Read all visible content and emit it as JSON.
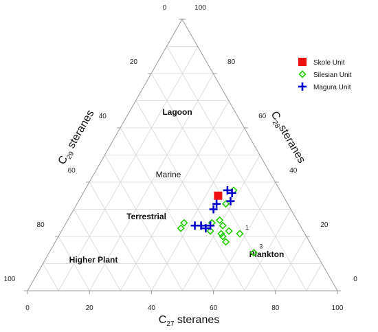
{
  "chart_data": {
    "type": "scatter",
    "subtype": "ternary",
    "axes": {
      "bottom": {
        "label_main": "C",
        "label_sub": "27",
        "label_rest": " steranes",
        "ticks": [
          "0",
          "20",
          "40",
          "60",
          "80",
          "100"
        ]
      },
      "left": {
        "label_main": "C",
        "label_sub": "29",
        "label_rest": " steranes",
        "ticks": [
          "100",
          "80",
          "60",
          "40",
          "20",
          "0"
        ]
      },
      "right": {
        "label_main": "C",
        "label_sub": "28",
        "label_rest": "steranes",
        "ticks": [
          "0",
          "20",
          "40",
          "60",
          "80",
          "100"
        ]
      }
    },
    "range": [
      0,
      100
    ],
    "grid": true,
    "regions": [
      "Lagoon",
      "Marine",
      "Terrestrial",
      "Higher Plant",
      "Plankton"
    ],
    "annotations": [
      {
        "text": "1",
        "c27": 58,
        "c28": 21
      },
      {
        "text": "3",
        "c27": 66,
        "c28": 14
      }
    ],
    "legend": {
      "placement": "top-right"
    },
    "series": [
      {
        "name": "Skole Unit",
        "marker": "square",
        "color": "#ee1111",
        "points": [
          {
            "c27": 44,
            "c28": 35,
            "c29": 21
          }
        ]
      },
      {
        "name": "Silesian Unit",
        "marker": "diamond",
        "color": "#22cc00",
        "points": [
          {
            "c27": 48,
            "c28": 37,
            "c29": 15
          },
          {
            "c27": 48,
            "c28": 32,
            "c29": 20
          },
          {
            "c27": 47,
            "c28": 25,
            "c29": 28
          },
          {
            "c27": 49,
            "c28": 26,
            "c29": 25
          },
          {
            "c27": 48,
            "c28": 22,
            "c29": 30
          },
          {
            "c27": 51,
            "c28": 24,
            "c29": 25
          },
          {
            "c27": 52,
            "c28": 21,
            "c29": 27
          },
          {
            "c27": 53,
            "c28": 20,
            "c29": 27
          },
          {
            "c27": 54,
            "c28": 22,
            "c29": 24
          },
          {
            "c27": 55,
            "c28": 18,
            "c29": 27
          },
          {
            "c27": 38,
            "c28": 25,
            "c29": 37
          },
          {
            "c27": 38,
            "c28": 23,
            "c29": 39
          },
          {
            "c27": 58,
            "c28": 21,
            "c29": 21
          },
          {
            "c27": 66,
            "c28": 14,
            "c29": 20
          }
        ]
      },
      {
        "name": "Magura Unit",
        "marker": "plus",
        "color": "#0000cc",
        "points": [
          {
            "c27": 46,
            "c28": 37,
            "c29": 17
          },
          {
            "c27": 48,
            "c28": 36,
            "c29": 16
          },
          {
            "c27": 49,
            "c28": 33,
            "c29": 18
          },
          {
            "c27": 45,
            "c28": 32,
            "c29": 23
          },
          {
            "c27": 45,
            "c28": 30,
            "c29": 25
          },
          {
            "c27": 46,
            "c28": 23,
            "c29": 31
          },
          {
            "c27": 42,
            "c28": 24,
            "c29": 34
          },
          {
            "c27": 44,
            "c28": 24,
            "c29": 32
          },
          {
            "c27": 47,
            "c28": 24,
            "c29": 29
          }
        ]
      }
    ]
  }
}
